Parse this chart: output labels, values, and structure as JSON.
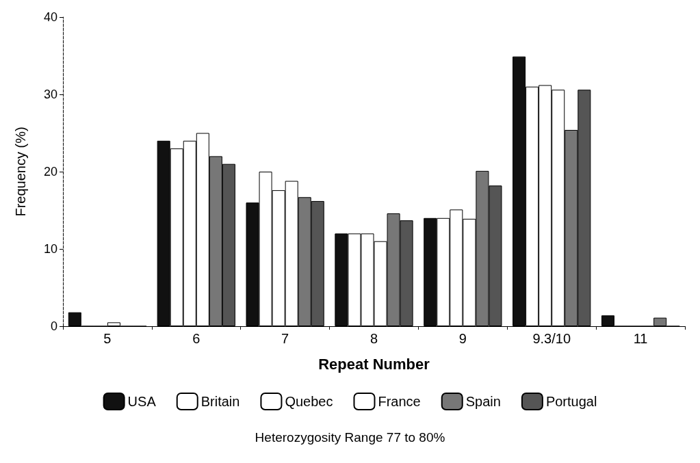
{
  "chart_data": {
    "type": "bar",
    "xlabel": "Repeat Number",
    "ylabel": "Frequency (%)",
    "categories": [
      "5",
      "6",
      "7",
      "8",
      "9",
      "9.3/10",
      "11"
    ],
    "series": [
      {
        "name": "USA",
        "color": "#111111",
        "values": [
          1.8,
          24,
          16,
          12,
          14,
          34.9,
          1.4
        ]
      },
      {
        "name": "Britain",
        "color": "#ffffff",
        "values": [
          0,
          23,
          20,
          12,
          14,
          31,
          0
        ]
      },
      {
        "name": "Quebec",
        "color": "#ffffff",
        "values": [
          0,
          24,
          17.6,
          12,
          15.1,
          31.2,
          0
        ]
      },
      {
        "name": "France",
        "color": "#ffffff",
        "values": [
          0.5,
          25,
          18.8,
          11,
          13.9,
          30.6,
          0
        ]
      },
      {
        "name": "Spain",
        "color": "#777777",
        "values": [
          0,
          22,
          16.7,
          14.6,
          20.1,
          25.4,
          1.1
        ]
      },
      {
        "name": "Portugal",
        "color": "#555555",
        "values": [
          0,
          21,
          16.2,
          13.7,
          18.2,
          30.6,
          0
        ]
      }
    ],
    "ylim": [
      0,
      40
    ],
    "yticks": [
      0,
      10,
      20,
      30,
      40
    ],
    "grid": false,
    "legend": "bottom",
    "annotations": [
      "Heterozygosity Range 77 to 80%"
    ]
  }
}
